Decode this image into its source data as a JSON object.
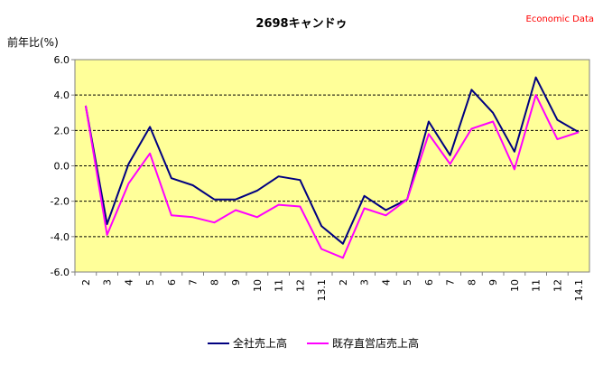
{
  "chart_data": {
    "type": "line",
    "title": "2698キャンドゥ",
    "watermark": "Economic Data",
    "ylabel": "前年比(%)",
    "xlabel": "",
    "ylim": [
      -6.0,
      6.0
    ],
    "yticks": [
      -6.0,
      -4.0,
      -2.0,
      0.0,
      2.0,
      4.0,
      6.0
    ],
    "ytick_labels": [
      "-6.0",
      "-4.0",
      "-2.0",
      "0.0",
      "2.0",
      "4.0",
      "6.0"
    ],
    "grid": "horizontal dashed",
    "legend_position": "bottom",
    "categories": [
      "2",
      "3",
      "4",
      "5",
      "6",
      "7",
      "8",
      "9",
      "10",
      "11",
      "12",
      "13.1",
      "2",
      "3",
      "4",
      "5",
      "6",
      "7",
      "8",
      "9",
      "10",
      "11",
      "12",
      "14.1"
    ],
    "series": [
      {
        "name": "全社売上高",
        "color": "#000080",
        "values": [
          3.4,
          -3.3,
          0.1,
          2.2,
          -0.7,
          -1.1,
          -1.9,
          -1.9,
          -1.4,
          -0.6,
          -0.8,
          -3.4,
          -4.4,
          -1.7,
          -2.5,
          -1.9,
          2.5,
          0.6,
          4.3,
          3.0,
          0.8,
          5.0,
          2.6,
          1.9
        ]
      },
      {
        "name": "既存直営店売上高",
        "color": "#ff00ff",
        "values": [
          3.4,
          -3.9,
          -1.0,
          0.7,
          -2.8,
          -2.9,
          -3.2,
          -2.5,
          -2.9,
          -2.2,
          -2.3,
          -4.7,
          -5.2,
          -2.4,
          -2.8,
          -1.9,
          1.8,
          0.1,
          2.1,
          2.5,
          -0.2,
          4.0,
          1.5,
          1.9
        ]
      }
    ],
    "colors": {
      "plot_background": "#ffff99",
      "watermark": "#ff0000",
      "grid": "#000000"
    }
  }
}
